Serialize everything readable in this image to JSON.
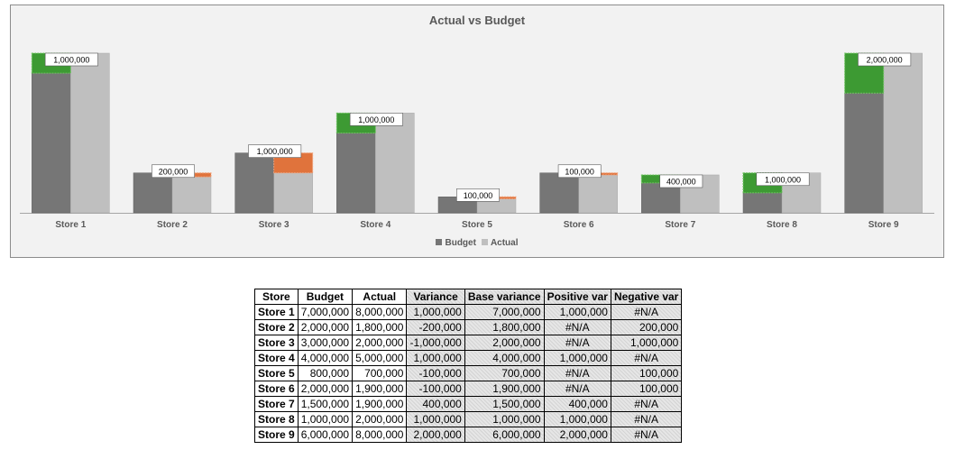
{
  "chart_data": {
    "type": "bar",
    "title": "Actual vs Budget",
    "categories": [
      "Store 1",
      "Store 2",
      "Store 3",
      "Store 4",
      "Store 5",
      "Store 6",
      "Store 7",
      "Store 8",
      "Store 9"
    ],
    "series": [
      {
        "name": "Budget",
        "values": [
          7000000,
          2000000,
          3000000,
          4000000,
          800000,
          2000000,
          1500000,
          1000000,
          6000000
        ],
        "color": "#767676"
      },
      {
        "name": "Actual",
        "values": [
          8000000,
          1800000,
          2000000,
          5000000,
          700000,
          1900000,
          1900000,
          2000000,
          8000000
        ],
        "color": "#bfbfbf"
      }
    ],
    "variance_labels": [
      "1,000,000",
      "200,000",
      "1,000,000",
      "1,000,000",
      "100,000",
      "100,000",
      "400,000",
      "1,000,000",
      "2,000,000"
    ],
    "ylim": [
      0,
      8000000
    ],
    "legend_position": "bottom",
    "grid": false,
    "positive_color": "#3d9a33",
    "negative_color": "#e0733c"
  },
  "table": {
    "headers": [
      "Store",
      "Budget",
      "Actual",
      "Variance",
      "Base variance",
      "Positive var",
      "Negative var"
    ],
    "rows": [
      [
        "Store 1",
        "7,000,000",
        "8,000,000",
        "1,000,000",
        "7,000,000",
        "1,000,000",
        "#N/A"
      ],
      [
        "Store 2",
        "2,000,000",
        "1,800,000",
        "-200,000",
        "1,800,000",
        "#N/A",
        "200,000"
      ],
      [
        "Store 3",
        "3,000,000",
        "2,000,000",
        "-1,000,000",
        "2,000,000",
        "#N/A",
        "1,000,000"
      ],
      [
        "Store 4",
        "4,000,000",
        "5,000,000",
        "1,000,000",
        "4,000,000",
        "1,000,000",
        "#N/A"
      ],
      [
        "Store 5",
        "800,000",
        "700,000",
        "-100,000",
        "700,000",
        "#N/A",
        "100,000"
      ],
      [
        "Store 6",
        "2,000,000",
        "1,900,000",
        "-100,000",
        "1,900,000",
        "#N/A",
        "100,000"
      ],
      [
        "Store 7",
        "1,500,000",
        "1,900,000",
        "400,000",
        "1,500,000",
        "400,000",
        "#N/A"
      ],
      [
        "Store 8",
        "1,000,000",
        "2,000,000",
        "1,000,000",
        "1,000,000",
        "1,000,000",
        "#N/A"
      ],
      [
        "Store 9",
        "6,000,000",
        "8,000,000",
        "2,000,000",
        "6,000,000",
        "2,000,000",
        "#N/A"
      ]
    ]
  }
}
